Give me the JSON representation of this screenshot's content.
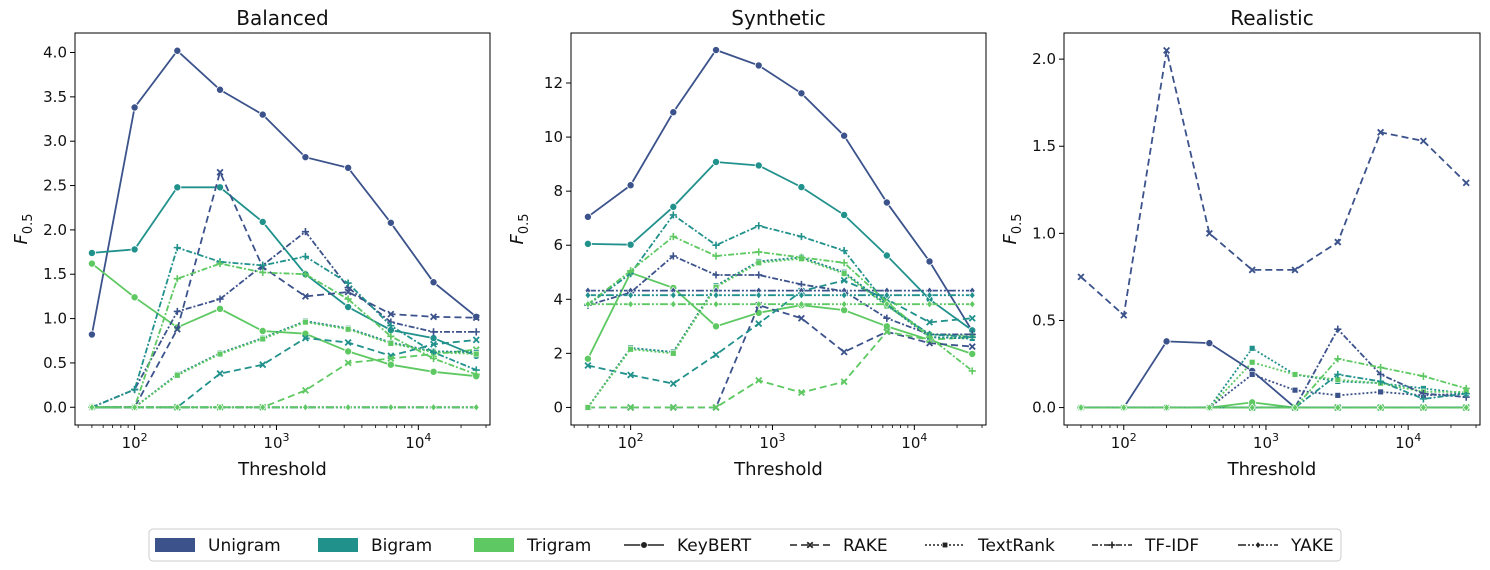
{
  "figure": {
    "legend": {
      "items": [
        {
          "label": "Unigram",
          "kind": "patch",
          "color": "#3b528b"
        },
        {
          "label": "Bigram",
          "kind": "patch",
          "color": "#21918c"
        },
        {
          "label": "Trigram",
          "kind": "patch",
          "color": "#5ec962"
        },
        {
          "label": "KeyBERT",
          "kind": "line",
          "method": "KeyBERT"
        },
        {
          "label": "RAKE",
          "kind": "line",
          "method": "RAKE"
        },
        {
          "label": "TextRank",
          "kind": "line",
          "method": "TextRank"
        },
        {
          "label": "TF-IDF",
          "kind": "line",
          "method": "TF-IDF"
        },
        {
          "label": "YAKE",
          "kind": "line",
          "method": "YAKE"
        }
      ]
    }
  },
  "chart_data": [
    {
      "type": "line",
      "title": "Balanced",
      "xlabel": "Threshold",
      "ylabel": "F0.5",
      "xscale": "log",
      "xlim": [
        38,
        32000
      ],
      "ylim": [
        -0.2,
        4.22
      ],
      "yticks": [
        0.0,
        0.5,
        1.0,
        1.5,
        2.0,
        2.5,
        3.0,
        3.5,
        4.0
      ],
      "ytick_labels": [
        "0.0",
        "0.5",
        "1.0",
        "1.5",
        "2.0",
        "2.5",
        "3.0",
        "3.5",
        "4.0"
      ],
      "x": [
        50,
        100,
        200,
        400,
        800,
        1600,
        3200,
        6400,
        12800,
        25600
      ],
      "series": [
        {
          "name": "KeyBERT Unigram",
          "method": "KeyBERT",
          "ngram": "Unigram",
          "values": [
            0.82,
            3.38,
            4.02,
            3.58,
            3.3,
            2.82,
            2.7,
            2.08,
            1.41,
            1.02
          ]
        },
        {
          "name": "KeyBERT Bigram",
          "method": "KeyBERT",
          "ngram": "Bigram",
          "values": [
            1.74,
            1.78,
            2.48,
            2.48,
            2.09,
            1.5,
            1.13,
            0.87,
            0.78,
            0.58
          ]
        },
        {
          "name": "KeyBERT Trigram",
          "method": "KeyBERT",
          "ngram": "Trigram",
          "values": [
            1.62,
            1.24,
            0.9,
            1.11,
            0.86,
            0.83,
            0.63,
            0.48,
            0.4,
            0.35
          ]
        },
        {
          "name": "RAKE Unigram",
          "method": "RAKE",
          "ngram": "Unigram",
          "values": [
            0.0,
            0.0,
            0.88,
            2.65,
            1.58,
            1.25,
            1.3,
            1.05,
            1.02,
            1.01
          ]
        },
        {
          "name": "RAKE Bigram",
          "method": "RAKE",
          "ngram": "Bigram",
          "values": [
            0.0,
            0.0,
            0.0,
            0.38,
            0.48,
            0.78,
            0.73,
            0.58,
            0.71,
            0.76
          ]
        },
        {
          "name": "RAKE Trigram",
          "method": "RAKE",
          "ngram": "Trigram",
          "values": [
            0.0,
            0.0,
            0.0,
            0.0,
            0.0,
            0.19,
            0.5,
            0.55,
            0.6,
            0.65
          ]
        },
        {
          "name": "TextRank Unigram",
          "method": "TextRank",
          "ngram": "Unigram",
          "values": [
            0.0,
            0.0,
            0.37,
            0.61,
            0.78,
            0.97,
            0.89,
            0.73,
            0.63,
            0.62
          ]
        },
        {
          "name": "TextRank Bigram",
          "method": "TextRank",
          "ngram": "Bigram",
          "values": [
            0.0,
            0.0,
            0.37,
            0.61,
            0.78,
            0.97,
            0.89,
            0.73,
            0.63,
            0.62
          ]
        },
        {
          "name": "TextRank Trigram",
          "method": "TextRank",
          "ngram": "Trigram",
          "values": [
            0.0,
            0.0,
            0.36,
            0.6,
            0.77,
            0.96,
            0.88,
            0.72,
            0.62,
            0.6
          ]
        },
        {
          "name": "TF-IDF Unigram",
          "method": "TF-IDF",
          "ngram": "Unigram",
          "values": [
            0.0,
            0.2,
            1.08,
            1.22,
            1.6,
            1.98,
            1.35,
            0.96,
            0.85,
            0.85
          ]
        },
        {
          "name": "TF-IDF Bigram",
          "method": "TF-IDF",
          "ngram": "Bigram",
          "values": [
            0.0,
            0.2,
            1.8,
            1.64,
            1.6,
            1.7,
            1.4,
            0.92,
            0.62,
            0.42
          ]
        },
        {
          "name": "TF-IDF Trigram",
          "method": "TF-IDF",
          "ngram": "Trigram",
          "values": [
            0.0,
            0.0,
            1.45,
            1.62,
            1.52,
            1.5,
            1.22,
            0.8,
            0.55,
            0.37
          ]
        },
        {
          "name": "YAKE Unigram",
          "method": "YAKE",
          "ngram": "Unigram",
          "values": [
            0.0,
            0.0,
            0.0,
            0.0,
            0.0,
            0.0,
            0.0,
            0.0,
            0.0,
            0.0
          ]
        },
        {
          "name": "YAKE Bigram",
          "method": "YAKE",
          "ngram": "Bigram",
          "values": [
            0.0,
            0.0,
            0.0,
            0.0,
            0.0,
            0.0,
            0.0,
            0.0,
            0.0,
            0.0
          ]
        },
        {
          "name": "YAKE Trigram",
          "method": "YAKE",
          "ngram": "Trigram",
          "values": [
            0.0,
            0.0,
            0.0,
            0.0,
            0.0,
            0.0,
            0.0,
            0.0,
            0.0,
            0.0
          ]
        }
      ]
    },
    {
      "type": "line",
      "title": "Synthetic",
      "xlabel": "Threshold",
      "ylabel": "F0.5",
      "xscale": "log",
      "xlim": [
        38,
        32000
      ],
      "ylim": [
        -0.65,
        13.85
      ],
      "yticks": [
        0,
        2,
        4,
        6,
        8,
        10,
        12
      ],
      "ytick_labels": [
        "0",
        "2",
        "4",
        "6",
        "8",
        "10",
        "12"
      ],
      "x": [
        50,
        100,
        200,
        400,
        800,
        1600,
        3200,
        6400,
        12800,
        25600
      ],
      "series": [
        {
          "name": "KeyBERT Unigram",
          "method": "KeyBERT",
          "ngram": "Unigram",
          "values": [
            7.05,
            8.22,
            10.92,
            13.22,
            12.65,
            11.62,
            10.05,
            7.58,
            5.4,
            2.82
          ]
        },
        {
          "name": "KeyBERT Bigram",
          "method": "KeyBERT",
          "ngram": "Bigram",
          "values": [
            6.05,
            6.02,
            7.42,
            9.08,
            8.95,
            8.15,
            7.12,
            5.62,
            4.0,
            2.85
          ]
        },
        {
          "name": "KeyBERT Trigram",
          "method": "KeyBERT",
          "ngram": "Trigram",
          "values": [
            1.8,
            4.98,
            4.42,
            3.0,
            3.5,
            3.78,
            3.6,
            3.0,
            2.5,
            1.98
          ]
        },
        {
          "name": "RAKE Unigram",
          "method": "RAKE",
          "ngram": "Unigram",
          "values": [
            0.0,
            0.0,
            0.0,
            0.0,
            3.78,
            3.3,
            2.05,
            2.8,
            2.38,
            2.25
          ]
        },
        {
          "name": "RAKE Bigram",
          "method": "RAKE",
          "ngram": "Bigram",
          "values": [
            1.55,
            1.2,
            0.88,
            1.95,
            3.1,
            4.3,
            4.7,
            4.0,
            3.15,
            3.3
          ]
        },
        {
          "name": "RAKE Trigram",
          "method": "RAKE",
          "ngram": "Trigram",
          "values": [
            0.0,
            0.0,
            0.0,
            0.0,
            1.0,
            0.55,
            0.95,
            2.8,
            2.5,
            2.6
          ]
        },
        {
          "name": "TextRank Unigram",
          "method": "TextRank",
          "ngram": "Unigram",
          "values": [
            0.0,
            2.2,
            2.05,
            4.5,
            5.4,
            5.55,
            5.0,
            3.8,
            2.6,
            2.55
          ]
        },
        {
          "name": "TextRank Bigram",
          "method": "TextRank",
          "ngram": "Bigram",
          "values": [
            0.0,
            2.2,
            2.05,
            4.5,
            5.4,
            5.55,
            5.0,
            3.8,
            2.6,
            2.55
          ]
        },
        {
          "name": "TextRank Trigram",
          "method": "TextRank",
          "ngram": "Trigram",
          "values": [
            0.0,
            2.15,
            2.0,
            4.45,
            5.35,
            5.5,
            4.95,
            3.75,
            2.7,
            2.65
          ]
        },
        {
          "name": "TF-IDF Unigram",
          "method": "TF-IDF",
          "ngram": "Unigram",
          "values": [
            3.78,
            4.25,
            5.6,
            4.9,
            4.9,
            4.55,
            4.3,
            3.3,
            2.7,
            2.7
          ]
        },
        {
          "name": "TF-IDF Bigram",
          "method": "TF-IDF",
          "ngram": "Bigram",
          "values": [
            3.8,
            4.95,
            7.12,
            6.0,
            6.72,
            6.32,
            5.8,
            3.8,
            2.7,
            2.6
          ]
        },
        {
          "name": "TF-IDF Trigram",
          "method": "TF-IDF",
          "ngram": "Trigram",
          "values": [
            3.82,
            5.05,
            6.32,
            5.6,
            5.75,
            5.55,
            5.35,
            3.9,
            2.6,
            1.35
          ]
        },
        {
          "name": "YAKE Unigram",
          "method": "YAKE",
          "ngram": "Unigram",
          "values": [
            4.32,
            4.32,
            4.32,
            4.32,
            4.32,
            4.32,
            4.32,
            4.32,
            4.32,
            4.32
          ]
        },
        {
          "name": "YAKE Bigram",
          "method": "YAKE",
          "ngram": "Bigram",
          "values": [
            4.15,
            4.15,
            4.15,
            4.15,
            4.15,
            4.15,
            4.15,
            4.15,
            4.15,
            4.15
          ]
        },
        {
          "name": "YAKE Trigram",
          "method": "YAKE",
          "ngram": "Trigram",
          "values": [
            3.82,
            3.82,
            3.82,
            3.82,
            3.82,
            3.82,
            3.82,
            3.82,
            3.82,
            3.82
          ]
        }
      ]
    },
    {
      "type": "line",
      "title": "Realistic",
      "xlabel": "Threshold",
      "ylabel": "F0.5",
      "xscale": "log",
      "xlim": [
        38,
        32000
      ],
      "ylim": [
        -0.1,
        2.15
      ],
      "yticks": [
        0.0,
        0.5,
        1.0,
        1.5,
        2.0
      ],
      "ytick_labels": [
        "0.0",
        "0.5",
        "1.0",
        "1.5",
        "2.0"
      ],
      "x": [
        50,
        100,
        200,
        400,
        800,
        1600,
        3200,
        6400,
        12800,
        25600
      ],
      "series": [
        {
          "name": "KeyBERT Unigram",
          "method": "KeyBERT",
          "ngram": "Unigram",
          "values": [
            0.0,
            0.0,
            0.38,
            0.37,
            0.21,
            0.0,
            0.0,
            0.0,
            0.0,
            0.0
          ]
        },
        {
          "name": "KeyBERT Bigram",
          "method": "KeyBERT",
          "ngram": "Bigram",
          "values": [
            0.0,
            0.0,
            0.0,
            0.0,
            0.0,
            0.0,
            0.0,
            0.0,
            0.0,
            0.0
          ]
        },
        {
          "name": "KeyBERT Trigram",
          "method": "KeyBERT",
          "ngram": "Trigram",
          "values": [
            0.0,
            0.0,
            0.0,
            0.0,
            0.03,
            0.0,
            0.0,
            0.0,
            0.0,
            0.0
          ]
        },
        {
          "name": "RAKE Unigram",
          "method": "RAKE",
          "ngram": "Unigram",
          "values": [
            0.75,
            0.53,
            2.05,
            1.0,
            0.79,
            0.79,
            0.95,
            1.58,
            1.53,
            1.29
          ]
        },
        {
          "name": "RAKE Bigram",
          "method": "RAKE",
          "ngram": "Bigram",
          "values": [
            0.0,
            0.0,
            0.0,
            0.0,
            0.0,
            0.0,
            0.0,
            0.0,
            0.0,
            0.0
          ]
        },
        {
          "name": "RAKE Trigram",
          "method": "RAKE",
          "ngram": "Trigram",
          "values": [
            0.0,
            0.0,
            0.0,
            0.0,
            0.0,
            0.0,
            0.0,
            0.0,
            0.0,
            0.0
          ]
        },
        {
          "name": "TextRank Unigram",
          "method": "TextRank",
          "ngram": "Unigram",
          "values": [
            0.0,
            0.0,
            0.0,
            0.0,
            0.19,
            0.1,
            0.07,
            0.09,
            0.07,
            0.08
          ]
        },
        {
          "name": "TextRank Bigram",
          "method": "TextRank",
          "ngram": "Bigram",
          "values": [
            0.0,
            0.0,
            0.0,
            0.0,
            0.34,
            0.19,
            0.15,
            0.14,
            0.11,
            0.08
          ]
        },
        {
          "name": "TextRank Trigram",
          "method": "TextRank",
          "ngram": "Trigram",
          "values": [
            0.0,
            0.0,
            0.0,
            0.0,
            0.26,
            0.19,
            0.16,
            0.14,
            0.09,
            0.09
          ]
        },
        {
          "name": "TF-IDF Unigram",
          "method": "TF-IDF",
          "ngram": "Unigram",
          "values": [
            0.0,
            0.0,
            0.0,
            0.0,
            0.0,
            0.0,
            0.45,
            0.19,
            0.08,
            0.06
          ]
        },
        {
          "name": "TF-IDF Bigram",
          "method": "TF-IDF",
          "ngram": "Bigram",
          "values": [
            0.0,
            0.0,
            0.0,
            0.0,
            0.0,
            0.0,
            0.19,
            0.15,
            0.05,
            0.08
          ]
        },
        {
          "name": "TF-IDF Trigram",
          "method": "TF-IDF",
          "ngram": "Trigram",
          "values": [
            0.0,
            0.0,
            0.0,
            0.0,
            0.0,
            0.0,
            0.28,
            0.23,
            0.18,
            0.11
          ]
        },
        {
          "name": "YAKE Unigram",
          "method": "YAKE",
          "ngram": "Unigram",
          "values": [
            0.0,
            0.0,
            0.0,
            0.0,
            0.0,
            0.0,
            0.0,
            0.0,
            0.0,
            0.0
          ]
        },
        {
          "name": "YAKE Bigram",
          "method": "YAKE",
          "ngram": "Bigram",
          "values": [
            0.0,
            0.0,
            0.0,
            0.0,
            0.0,
            0.0,
            0.0,
            0.0,
            0.0,
            0.0
          ]
        },
        {
          "name": "YAKE Trigram",
          "method": "YAKE",
          "ngram": "Trigram",
          "values": [
            0.0,
            0.0,
            0.0,
            0.0,
            0.0,
            0.0,
            0.0,
            0.0,
            0.0,
            0.0
          ]
        }
      ]
    }
  ],
  "styles": {
    "colors": {
      "Unigram": "#3b528b",
      "Bigram": "#21918c",
      "Trigram": "#5ec962"
    },
    "axis_color": "#000000",
    "background": "#ffffff"
  }
}
